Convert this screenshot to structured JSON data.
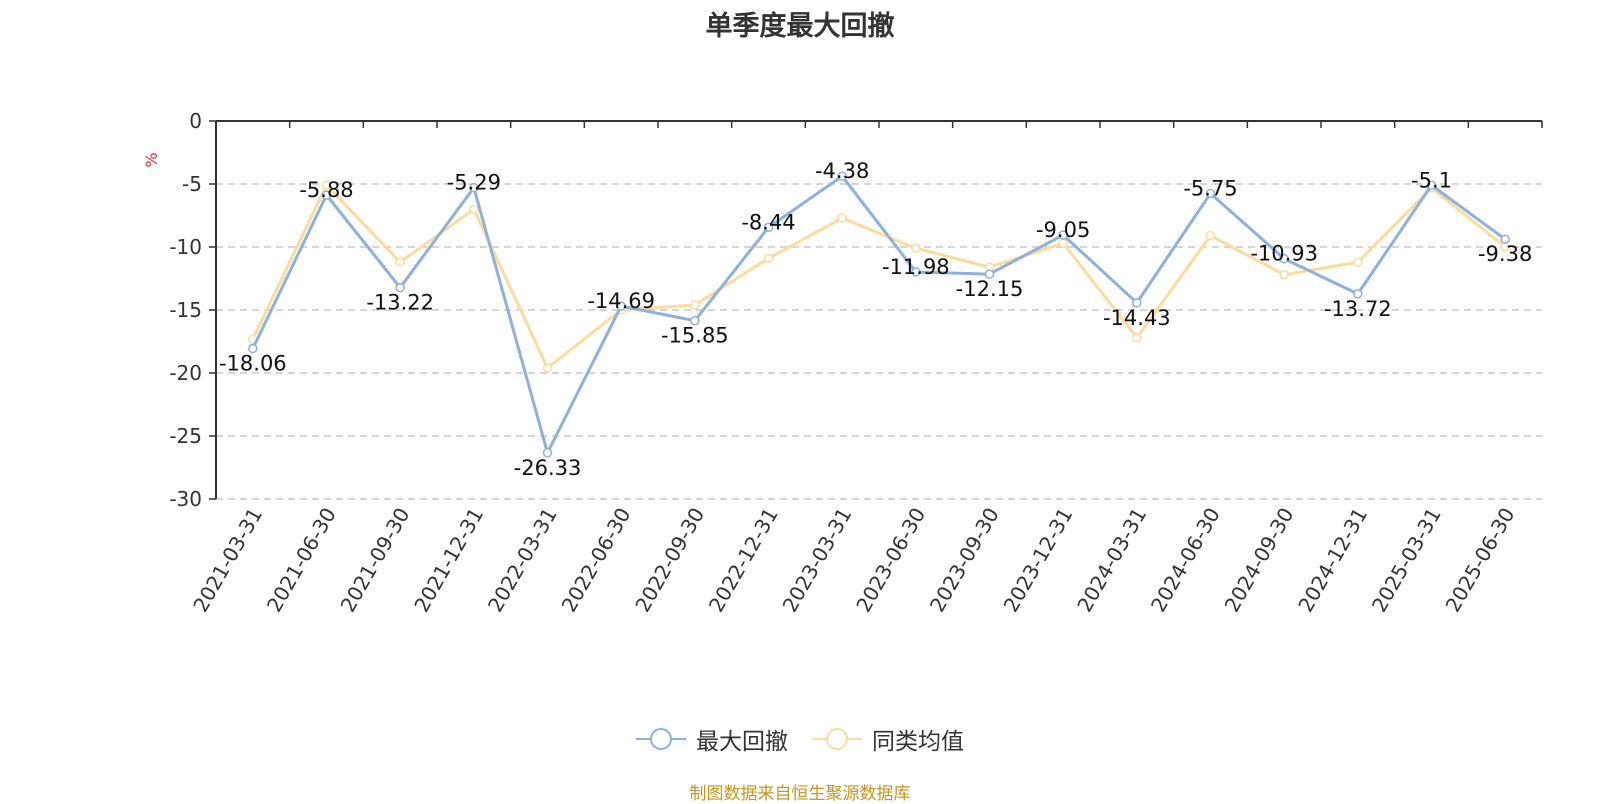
{
  "chart_data": {
    "type": "line",
    "title": "单季度最大回撤",
    "ylabel": "%",
    "ylim": [
      -30,
      0
    ],
    "yticks": [
      0,
      -5,
      -10,
      -15,
      -20,
      -25,
      -30
    ],
    "grid": true,
    "legend_position": "bottom-center",
    "categories": [
      "2021-03-31",
      "2021-06-30",
      "2021-09-30",
      "2021-12-31",
      "2022-03-31",
      "2022-06-30",
      "2022-09-30",
      "2022-12-31",
      "2023-03-31",
      "2023-06-30",
      "2023-09-30",
      "2023-12-31",
      "2024-03-31",
      "2024-06-30",
      "2024-09-30",
      "2024-12-31",
      "2025-03-31",
      "2025-06-30"
    ],
    "series": [
      {
        "name": "最大回撤",
        "color": "#8eb0dc",
        "values": [
          -18.06,
          -5.88,
          -13.22,
          -5.29,
          -26.33,
          -14.69,
          -15.85,
          -8.44,
          -4.38,
          -11.98,
          -12.15,
          -9.05,
          -14.43,
          -5.75,
          -10.93,
          -13.72,
          -5.1,
          -9.38
        ],
        "labels": [
          "-18.06",
          "-5.88",
          "-13.22",
          "-5.29",
          "-26.33",
          "-14.69",
          "-15.85",
          "-8.44",
          "-4.38",
          "-11.98",
          "-12.15",
          "-9.05",
          "-14.43",
          "-5.75",
          "-10.93",
          "-13.72",
          "-5.1",
          "-9.38"
        ]
      },
      {
        "name": "同类均值",
        "color": "#fcdc9c",
        "values": [
          -17.3,
          -5.1,
          -11.2,
          -7.0,
          -19.6,
          -15.0,
          -14.6,
          -10.9,
          -7.7,
          -10.1,
          -11.6,
          -9.7,
          -17.2,
          -9.1,
          -12.2,
          -11.2,
          -5.3,
          -10.0
        ]
      }
    ]
  },
  "footer": {
    "source": "制图数据来自恒生聚源数据库"
  }
}
